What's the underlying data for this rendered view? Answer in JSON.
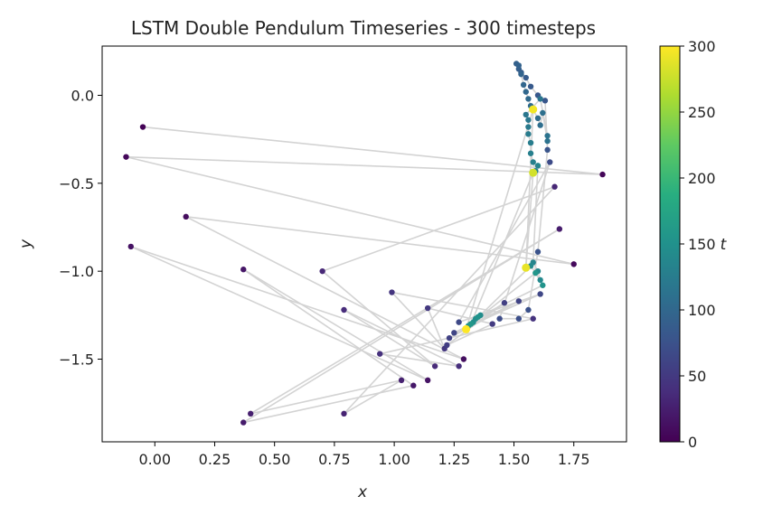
{
  "chart_data": {
    "type": "scatter",
    "title": "LSTM Double Pendulum Timeseries - 300 timesteps",
    "xlabel": "x",
    "ylabel": "y",
    "xlim": [
      -0.22,
      1.97
    ],
    "ylim": [
      -1.97,
      0.28
    ],
    "xticks": [
      "0.00",
      "0.25",
      "0.50",
      "0.75",
      "1.00",
      "1.25",
      "1.50",
      "1.75"
    ],
    "xtick_values": [
      0,
      0.25,
      0.5,
      0.75,
      1.0,
      1.25,
      1.5,
      1.75
    ],
    "yticks": [
      "0.0",
      "−0.5",
      "−1.0",
      "−1.5"
    ],
    "ytick_values": [
      0,
      -0.5,
      -1.0,
      -1.5
    ],
    "line_color": "#d3d3d3",
    "colormap": "viridis",
    "colorbar": {
      "label": "t",
      "range": [
        0,
        300
      ],
      "ticks": [
        "0",
        "50",
        "100",
        "150",
        "200",
        "250",
        "300"
      ],
      "tick_values": [
        0,
        50,
        100,
        150,
        200,
        250,
        300
      ]
    },
    "points": [
      {
        "x": -0.05,
        "y": -0.18,
        "t": 2
      },
      {
        "x": 1.87,
        "y": -0.45,
        "t": 4
      },
      {
        "x": -0.12,
        "y": -0.35,
        "t": 6
      },
      {
        "x": 1.75,
        "y": -0.96,
        "t": 8
      },
      {
        "x": 0.13,
        "y": -0.69,
        "t": 10
      },
      {
        "x": 1.29,
        "y": -1.5,
        "t": 12
      },
      {
        "x": -0.1,
        "y": -0.86,
        "t": 14
      },
      {
        "x": 1.14,
        "y": -1.62,
        "t": 16
      },
      {
        "x": 0.37,
        "y": -0.99,
        "t": 18
      },
      {
        "x": 1.08,
        "y": -1.65,
        "t": 20
      },
      {
        "x": 0.37,
        "y": -1.86,
        "t": 22
      },
      {
        "x": 1.69,
        "y": -0.76,
        "t": 24
      },
      {
        "x": 0.4,
        "y": -1.81,
        "t": 26
      },
      {
        "x": 1.03,
        "y": -1.62,
        "t": 28
      },
      {
        "x": 0.79,
        "y": -1.81,
        "t": 30
      },
      {
        "x": 1.67,
        "y": -0.52,
        "t": 32
      },
      {
        "x": 0.7,
        "y": -1.0,
        "t": 34
      },
      {
        "x": 1.17,
        "y": -1.54,
        "t": 36
      },
      {
        "x": 0.79,
        "y": -1.22,
        "t": 38
      },
      {
        "x": 1.27,
        "y": -1.54,
        "t": 40
      },
      {
        "x": 0.94,
        "y": -1.47,
        "t": 42
      },
      {
        "x": 1.58,
        "y": -1.27,
        "t": 44
      },
      {
        "x": 0.99,
        "y": -1.12,
        "t": 46
      },
      {
        "x": 1.21,
        "y": -1.44,
        "t": 48
      },
      {
        "x": 1.14,
        "y": -1.21,
        "t": 50
      },
      {
        "x": 1.41,
        "y": -1.3,
        "t": 52
      },
      {
        "x": 1.22,
        "y": -1.42,
        "t": 54
      },
      {
        "x": 1.46,
        "y": -1.18,
        "t": 56
      },
      {
        "x": 1.23,
        "y": -1.38,
        "t": 58
      },
      {
        "x": 1.52,
        "y": -1.17,
        "t": 60
      },
      {
        "x": 1.25,
        "y": -1.35,
        "t": 62
      },
      {
        "x": 1.61,
        "y": -1.13,
        "t": 64
      },
      {
        "x": 1.27,
        "y": -1.29,
        "t": 66
      },
      {
        "x": 1.65,
        "y": -0.38,
        "t": 68
      },
      {
        "x": 1.44,
        "y": -1.27,
        "t": 70
      },
      {
        "x": 1.52,
        "y": -1.27,
        "t": 72
      },
      {
        "x": 1.56,
        "y": -1.22,
        "t": 74
      },
      {
        "x": 1.6,
        "y": -0.89,
        "t": 76
      },
      {
        "x": 1.64,
        "y": -0.31,
        "t": 78
      },
      {
        "x": 1.63,
        "y": -0.03,
        "t": 80
      },
      {
        "x": 1.6,
        "y": 0.0,
        "t": 82
      },
      {
        "x": 1.57,
        "y": 0.05,
        "t": 84
      },
      {
        "x": 1.55,
        "y": 0.1,
        "t": 86
      },
      {
        "x": 1.53,
        "y": 0.13,
        "t": 88
      },
      {
        "x": 1.52,
        "y": 0.15,
        "t": 90
      },
      {
        "x": 1.51,
        "y": 0.18,
        "t": 92
      },
      {
        "x": 1.52,
        "y": 0.17,
        "t": 94
      },
      {
        "x": 1.53,
        "y": 0.12,
        "t": 96
      },
      {
        "x": 1.54,
        "y": 0.06,
        "t": 98
      },
      {
        "x": 1.55,
        "y": 0.02,
        "t": 100
      },
      {
        "x": 1.56,
        "y": -0.02,
        "t": 102
      },
      {
        "x": 1.57,
        "y": -0.06,
        "t": 104
      },
      {
        "x": 1.6,
        "y": -0.13,
        "t": 106
      },
      {
        "x": 1.61,
        "y": -0.17,
        "t": 108
      },
      {
        "x": 1.62,
        "y": -0.1,
        "t": 110
      },
      {
        "x": 1.64,
        "y": -0.26,
        "t": 112
      },
      {
        "x": 1.64,
        "y": -0.23,
        "t": 114
      },
      {
        "x": 1.61,
        "y": -0.02,
        "t": 116
      },
      {
        "x": 1.55,
        "y": -0.11,
        "t": 118
      },
      {
        "x": 1.56,
        "y": -0.14,
        "t": 120
      },
      {
        "x": 1.56,
        "y": -0.18,
        "t": 122
      },
      {
        "x": 1.56,
        "y": -0.22,
        "t": 124
      },
      {
        "x": 1.57,
        "y": -0.27,
        "t": 126
      },
      {
        "x": 1.57,
        "y": -0.33,
        "t": 128
      },
      {
        "x": 1.58,
        "y": -0.38,
        "t": 130
      },
      {
        "x": 1.59,
        "y": -0.43,
        "t": 132
      },
      {
        "x": 1.6,
        "y": -0.4,
        "t": 134
      },
      {
        "x": 1.58,
        "y": -0.95,
        "t": 136
      },
      {
        "x": 1.6,
        "y": -1.0,
        "t": 138
      },
      {
        "x": 1.61,
        "y": -1.05,
        "t": 140
      },
      {
        "x": 1.57,
        "y": -0.97,
        "t": 142
      },
      {
        "x": 1.36,
        "y": -1.25,
        "t": 144
      },
      {
        "x": 1.34,
        "y": -1.27,
        "t": 146
      },
      {
        "x": 1.33,
        "y": -1.29,
        "t": 148
      },
      {
        "x": 1.31,
        "y": -1.31,
        "t": 150
      },
      {
        "x": 1.35,
        "y": -1.26,
        "t": 152
      },
      {
        "x": 1.62,
        "y": -1.08,
        "t": 154
      },
      {
        "x": 1.59,
        "y": -1.01,
        "t": 156
      },
      {
        "x": 1.32,
        "y": -1.3,
        "t": 158
      },
      {
        "x": 1.3,
        "y": -1.33,
        "t": 300
      },
      {
        "x": 1.55,
        "y": -0.98,
        "t": 290
      },
      {
        "x": 1.58,
        "y": -0.44,
        "t": 280
      },
      {
        "x": 1.58,
        "y": -0.08,
        "t": 295
      }
    ]
  }
}
